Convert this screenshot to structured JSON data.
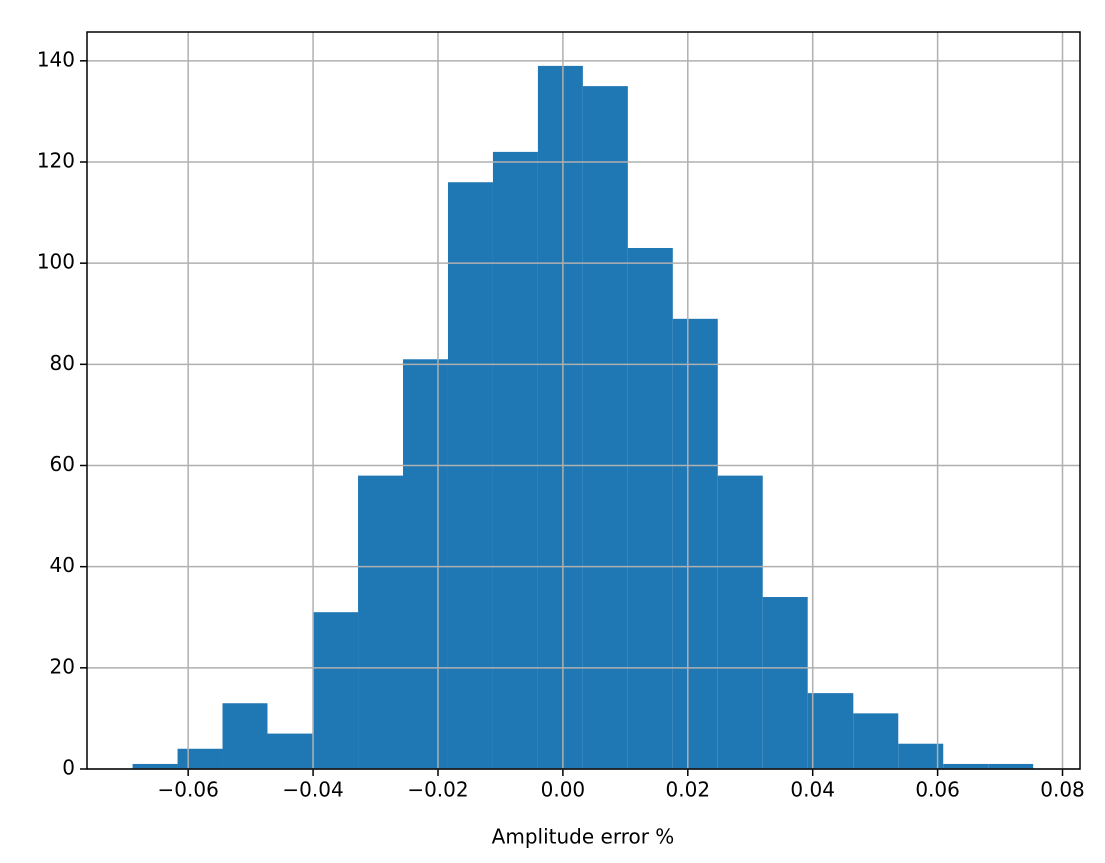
{
  "chart_data": {
    "type": "histogram",
    "xlabel": "Amplitude error %",
    "bins": [
      -0.0689,
      -0.0617,
      -0.0545,
      -0.0473,
      -0.0401,
      -0.0328,
      -0.0256,
      -0.0184,
      -0.0112,
      -0.004,
      0.0032,
      0.0104,
      0.0176,
      0.0248,
      0.032,
      0.0392,
      0.0465,
      0.0537,
      0.0609,
      0.0681,
      0.0753
    ],
    "values": [
      1,
      4,
      13,
      7,
      31,
      58,
      81,
      116,
      122,
      139,
      135,
      103,
      89,
      58,
      34,
      15,
      11,
      5,
      1,
      1
    ],
    "color": "#1f77b4",
    "xlim": [
      -0.0762,
      0.0828
    ],
    "xticks": [
      {
        "value": -0.06,
        "label": "−0.06"
      },
      {
        "value": -0.04,
        "label": "−0.04"
      },
      {
        "value": -0.02,
        "label": "−0.02"
      },
      {
        "value": 0,
        "label": "0.00"
      },
      0.02,
      0.04,
      0.06,
      0.08
    ],
    "ylim": [
      0,
      145.7
    ],
    "yticks": [
      0,
      20,
      40,
      60,
      80,
      100,
      120,
      140
    ],
    "grid": true
  }
}
